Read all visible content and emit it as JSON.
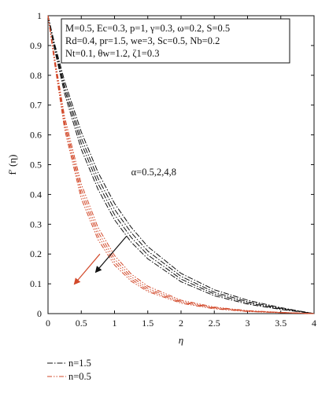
{
  "chart_data": {
    "type": "line",
    "xlabel": "η",
    "ylabel": "f′ (η)",
    "xlim": [
      0,
      4
    ],
    "ylim": [
      0,
      1
    ],
    "xticks": [
      "0",
      "0.5",
      "1",
      "1.5",
      "2",
      "2.5",
      "3",
      "3.5",
      "4"
    ],
    "yticks": [
      "0",
      "0.1",
      "0.2",
      "0.3",
      "0.4",
      "0.5",
      "0.6",
      "0.7",
      "0.8",
      "0.9",
      "1"
    ],
    "grid": false,
    "parameter_box": [
      "M=0.5, Ec=0.3, p=1, γ=0.3, ω=0.2, S=0.5",
      "Rd=0.4, pr=1.5, we=3, Sc=0.5, Nb=0.2",
      "Nt=0.1, θw=1.2, ζ1=0.3"
    ],
    "annotation": "α=0.5,2,4,8",
    "legend_position": "bottom-left, below plot",
    "series": [
      {
        "name": "n=1.5",
        "color": "#111111",
        "dash": "dash-dot",
        "alpha": 0.5,
        "x": [
          0,
          0.1,
          0.25,
          0.5,
          0.75,
          1,
          1.25,
          1.5,
          2,
          2.5,
          3,
          3.5,
          4
        ],
        "y": [
          1,
          0.905,
          0.78,
          0.61,
          0.475,
          0.37,
          0.29,
          0.225,
          0.135,
          0.08,
          0.045,
          0.02,
          0
        ]
      },
      {
        "name": "n=1.5",
        "color": "#111111",
        "dash": "dash-dot",
        "alpha": 2,
        "x": [
          0,
          0.1,
          0.25,
          0.5,
          0.75,
          1,
          1.25,
          1.5,
          2,
          2.5,
          3,
          3.5,
          4
        ],
        "y": [
          1,
          0.898,
          0.765,
          0.59,
          0.455,
          0.35,
          0.272,
          0.21,
          0.125,
          0.072,
          0.04,
          0.018,
          0
        ]
      },
      {
        "name": "n=1.5",
        "color": "#111111",
        "dash": "dash-dot",
        "alpha": 4,
        "x": [
          0,
          0.1,
          0.25,
          0.5,
          0.75,
          1,
          1.25,
          1.5,
          2,
          2.5,
          3,
          3.5,
          4
        ],
        "y": [
          1,
          0.892,
          0.752,
          0.572,
          0.437,
          0.332,
          0.256,
          0.197,
          0.116,
          0.066,
          0.036,
          0.016,
          0
        ]
      },
      {
        "name": "n=1.5",
        "color": "#111111",
        "dash": "dash-dot",
        "alpha": 8,
        "x": [
          0,
          0.1,
          0.25,
          0.5,
          0.75,
          1,
          1.25,
          1.5,
          2,
          2.5,
          3,
          3.5,
          4
        ],
        "y": [
          1,
          0.885,
          0.738,
          0.552,
          0.418,
          0.315,
          0.24,
          0.184,
          0.107,
          0.06,
          0.032,
          0.014,
          0
        ]
      },
      {
        "name": "n=0.5",
        "color": "#d2492a",
        "dash": "dash-dot-dot",
        "alpha": 0.5,
        "x": [
          0,
          0.1,
          0.25,
          0.5,
          0.75,
          1,
          1.25,
          1.5,
          2,
          2.5,
          3,
          3.5,
          4
        ],
        "y": [
          1,
          0.86,
          0.66,
          0.435,
          0.29,
          0.195,
          0.133,
          0.092,
          0.045,
          0.022,
          0.01,
          0.004,
          0
        ]
      },
      {
        "name": "n=0.5",
        "color": "#d2492a",
        "dash": "dash-dot-dot",
        "alpha": 2,
        "x": [
          0,
          0.1,
          0.25,
          0.5,
          0.75,
          1,
          1.25,
          1.5,
          2,
          2.5,
          3,
          3.5,
          4
        ],
        "y": [
          1,
          0.852,
          0.645,
          0.418,
          0.275,
          0.183,
          0.124,
          0.085,
          0.041,
          0.02,
          0.009,
          0.004,
          0
        ]
      },
      {
        "name": "n=0.5",
        "color": "#d2492a",
        "dash": "dash-dot-dot",
        "alpha": 4,
        "x": [
          0,
          0.1,
          0.25,
          0.5,
          0.75,
          1,
          1.25,
          1.5,
          2,
          2.5,
          3,
          3.5,
          4
        ],
        "y": [
          1,
          0.845,
          0.632,
          0.402,
          0.262,
          0.173,
          0.116,
          0.079,
          0.038,
          0.018,
          0.008,
          0.003,
          0
        ]
      },
      {
        "name": "n=0.5",
        "color": "#d2492a",
        "dash": "dash-dot-dot",
        "alpha": 8,
        "x": [
          0,
          0.1,
          0.25,
          0.5,
          0.75,
          1,
          1.25,
          1.5,
          2,
          2.5,
          3,
          3.5,
          4
        ],
        "y": [
          1,
          0.838,
          0.618,
          0.386,
          0.249,
          0.163,
          0.109,
          0.074,
          0.035,
          0.016,
          0.007,
          0.003,
          0
        ]
      }
    ],
    "arrows": [
      {
        "color": "#111111",
        "from": [
          1.18,
          0.26
        ],
        "to": [
          0.72,
          0.14
        ]
      },
      {
        "color": "#d2492a",
        "from": [
          0.78,
          0.2
        ],
        "to": [
          0.4,
          0.1
        ]
      }
    ],
    "legend": [
      {
        "label": "n=1.5",
        "color": "#111111",
        "dash": "dash-dot"
      },
      {
        "label": "n=0.5",
        "color": "#d2492a",
        "dash": "dash-dot-dot"
      }
    ]
  }
}
